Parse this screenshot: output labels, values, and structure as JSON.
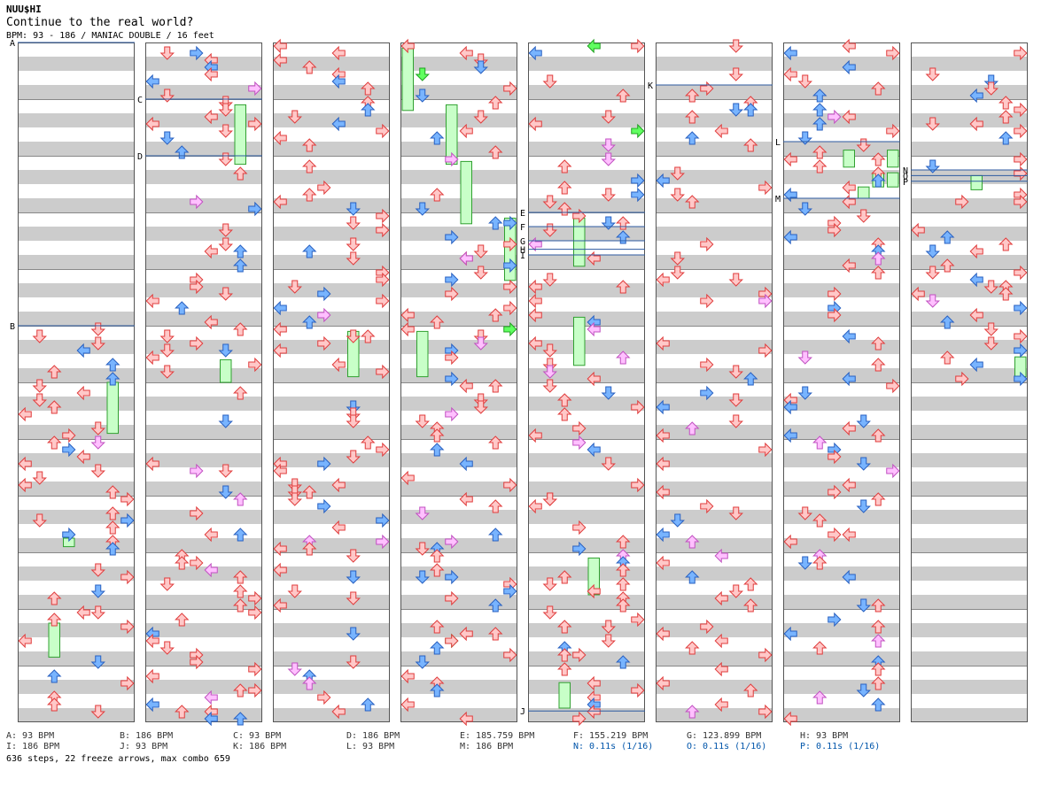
{
  "header": {
    "artist": "NUU$HI",
    "title": "Continue to the real world?",
    "info": "BPM: 93 - 186 / MANIAC DOUBLE / 16 feet"
  },
  "bpm_legend": [
    {
      "text": "A: 93 BPM",
      "kind": "bpm"
    },
    {
      "text": "B: 186 BPM",
      "kind": "bpm"
    },
    {
      "text": "C: 93 BPM",
      "kind": "bpm"
    },
    {
      "text": "D: 186 BPM",
      "kind": "bpm"
    },
    {
      "text": "E: 185.759 BPM",
      "kind": "bpm"
    },
    {
      "text": "F: 155.219 BPM",
      "kind": "bpm"
    },
    {
      "text": "G: 123.899 BPM",
      "kind": "bpm"
    },
    {
      "text": "H: 93 BPM",
      "kind": "bpm"
    },
    {
      "text": "I: 186 BPM",
      "kind": "bpm"
    },
    {
      "text": "J: 93 BPM",
      "kind": "bpm"
    },
    {
      "text": "K: 186 BPM",
      "kind": "bpm"
    },
    {
      "text": "L: 93 BPM",
      "kind": "bpm"
    },
    {
      "text": "M: 186 BPM",
      "kind": "bpm"
    },
    {
      "text": "N: 0.11s (1/16)",
      "kind": "stop"
    },
    {
      "text": "O: 0.11s (1/16)",
      "kind": "stop"
    },
    {
      "text": "P: 0.11s (1/16)",
      "kind": "stop"
    }
  ],
  "footer": "636 steps, 22 freeze arrows, max combo 659",
  "chart_data": {
    "type": "step-chart",
    "columns": 8,
    "lanes_per_column": 8,
    "measures_per_column": 12,
    "colors": {
      "arrow_left": "#ffc8c8",
      "arrow_left_edge": "#e03c3c",
      "arrow_blue": "#78b4ff",
      "arrow_blue_edge": "#2860c0",
      "arrow_pink": "#ffc0ff",
      "arrow_pink_edge": "#c050c0",
      "arrow_green": "#60ff60",
      "arrow_green_edge": "#20a020",
      "freeze": "#c8ffc8",
      "freeze_edge": "#30a030",
      "row_gray": "#cccccc",
      "marker_line": "#2d5aa0"
    },
    "markers": [
      {
        "label": "A",
        "column": 0,
        "measure": 0
      },
      {
        "label": "B",
        "column": 0,
        "measure": 5
      },
      {
        "label": "C",
        "column": 1,
        "measure": 1
      },
      {
        "label": "D",
        "column": 1,
        "measure": 2
      },
      {
        "label": "E",
        "column": 4,
        "measure": 3
      },
      {
        "label": "F",
        "column": 4,
        "measure": 3.25
      },
      {
        "label": "G",
        "column": 4,
        "measure": 3.5
      },
      {
        "label": "H",
        "column": 4,
        "measure": 3.65
      },
      {
        "label": "I",
        "column": 4,
        "measure": 3.75
      },
      {
        "label": "J",
        "column": 4,
        "measure": 11.8
      },
      {
        "label": "K",
        "column": 5,
        "measure": 0.75
      },
      {
        "label": "L",
        "column": 6,
        "measure": 1.75
      },
      {
        "label": "M",
        "column": 6,
        "measure": 2.75
      },
      {
        "label": "N",
        "column": 7,
        "measure": 2.25
      },
      {
        "label": "O",
        "column": 7,
        "measure": 2.35
      },
      {
        "label": "P",
        "column": 7,
        "measure": 2.45
      }
    ],
    "freezes": [
      {
        "column": 0,
        "lane": 6,
        "start": 6.0,
        "end": 6.9
      },
      {
        "column": 0,
        "lane": 3,
        "start": 8.75,
        "end": 8.9
      },
      {
        "column": 0,
        "lane": 2,
        "start": 10.25,
        "end": 10.85
      },
      {
        "column": 1,
        "lane": 6,
        "start": 1.1,
        "end": 2.15
      },
      {
        "column": 1,
        "lane": 5,
        "start": 5.6,
        "end": 6.0
      },
      {
        "column": 2,
        "lane": 5,
        "start": 5.1,
        "end": 5.9
      },
      {
        "column": 3,
        "lane": 0,
        "start": 0.1,
        "end": 1.2
      },
      {
        "column": 3,
        "lane": 3,
        "start": 1.1,
        "end": 2.15
      },
      {
        "column": 3,
        "lane": 4,
        "start": 2.1,
        "end": 3.2
      },
      {
        "column": 3,
        "lane": 7,
        "start": 3.1,
        "end": 4.2
      },
      {
        "column": 3,
        "lane": 1,
        "start": 5.1,
        "end": 5.9
      },
      {
        "column": 4,
        "lane": 3,
        "start": 3.1,
        "end": 3.95
      },
      {
        "column": 4,
        "lane": 3,
        "start": 4.85,
        "end": 5.7
      },
      {
        "column": 4,
        "lane": 4,
        "start": 9.1,
        "end": 9.75
      },
      {
        "column": 4,
        "lane": 2,
        "start": 11.3,
        "end": 11.75
      },
      {
        "column": 6,
        "lane": 4,
        "start": 1.9,
        "end": 2.2
      },
      {
        "column": 6,
        "lane": 7,
        "start": 1.9,
        "end": 2.2
      },
      {
        "column": 6,
        "lane": 5,
        "start": 2.55,
        "end": 2.75
      },
      {
        "column": 6,
        "lane": 6,
        "start": 2.3,
        "end": 2.55
      },
      {
        "column": 6,
        "lane": 7,
        "start": 2.3,
        "end": 2.55
      },
      {
        "column": 7,
        "lane": 4,
        "start": 2.35,
        "end": 2.6
      },
      {
        "column": 7,
        "lane": 7,
        "start": 5.55,
        "end": 5.9
      }
    ]
  }
}
